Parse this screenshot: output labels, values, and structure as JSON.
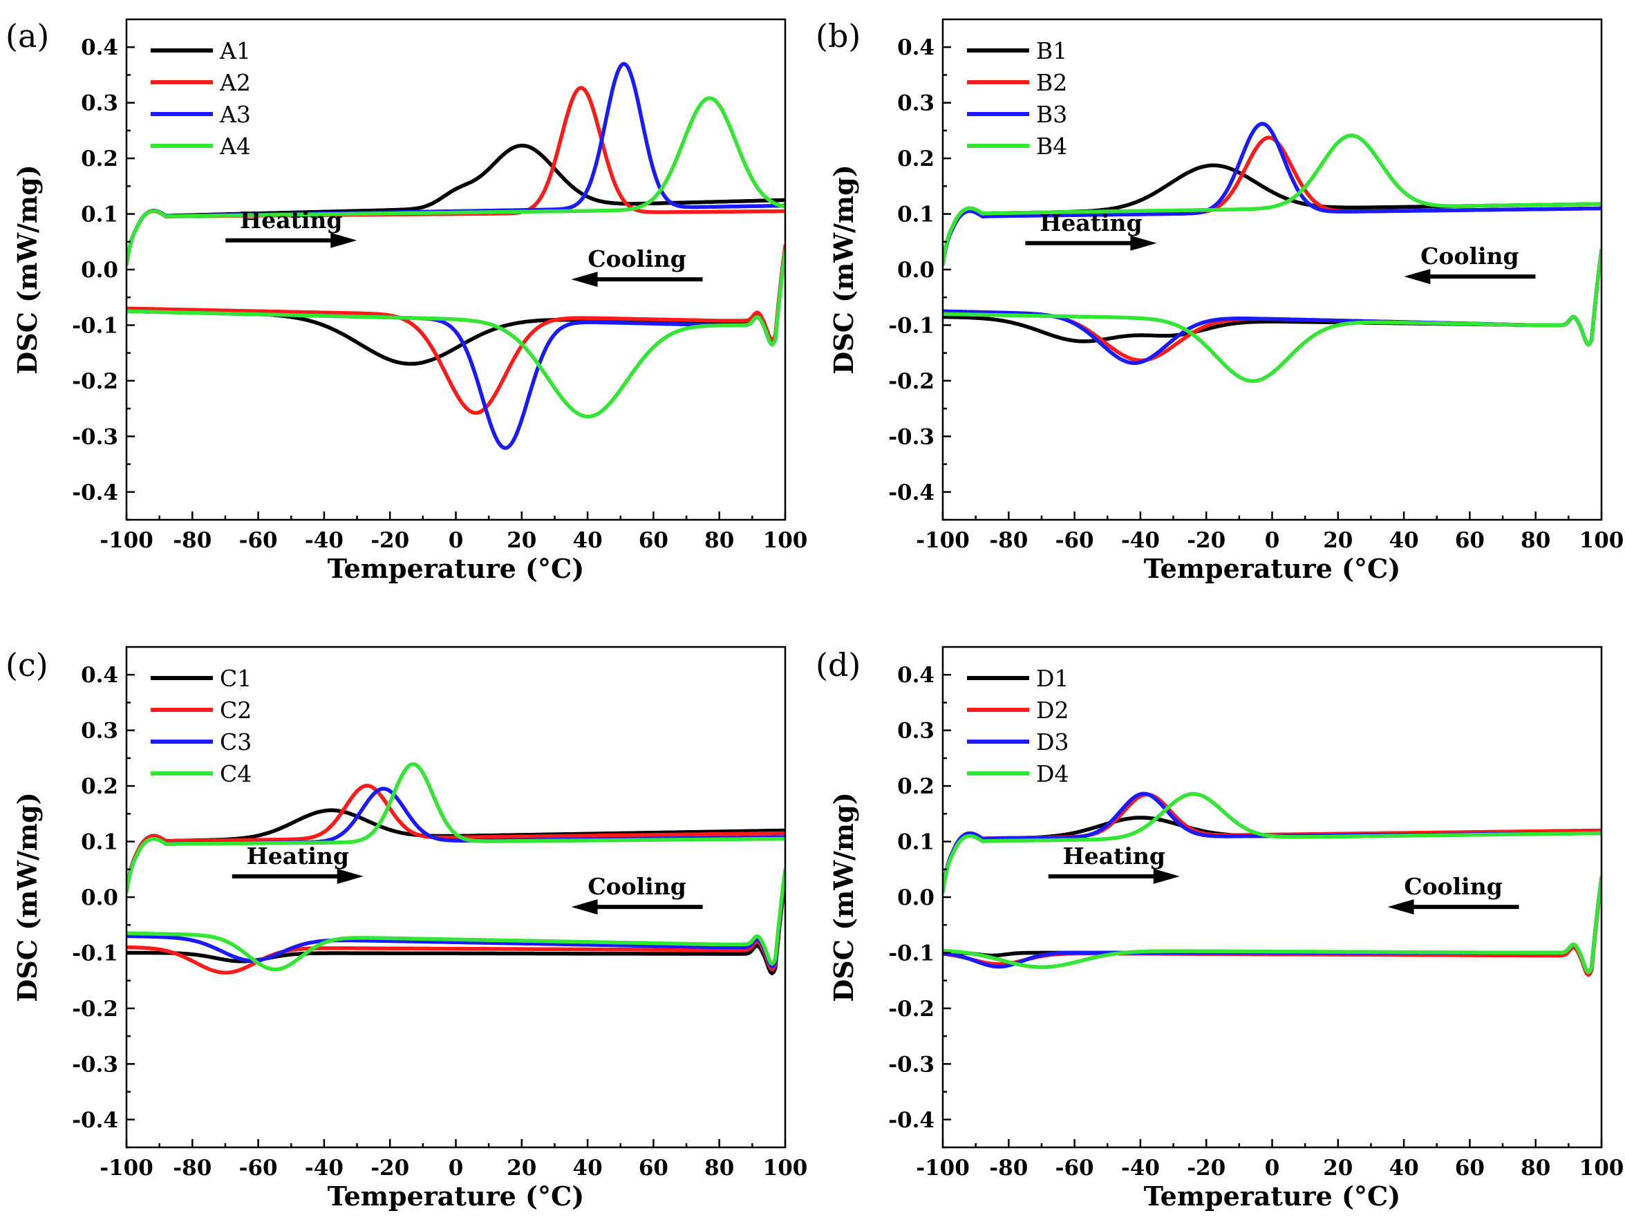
{
  "colors": {
    "s1": "#000000",
    "s2": "#ff1a1a",
    "s3": "#1a1aff",
    "s4": "#33e633"
  },
  "chart_data": [
    {
      "panel_label": "(a)",
      "type": "line",
      "xlabel": "Temperature (°C)",
      "ylabel": "DSC (mW/mg)",
      "xlim": [
        -100,
        100
      ],
      "ylim": [
        -0.45,
        0.45
      ],
      "xticks": [
        -100,
        -80,
        -60,
        -40,
        -20,
        0,
        20,
        40,
        60,
        80,
        100
      ],
      "xtick_labels": [
        "-100",
        "-80",
        "-60",
        "-40",
        "-20",
        "0",
        "20",
        "40",
        "60",
        "80",
        "100"
      ],
      "yticks": [
        -0.4,
        -0.3,
        -0.2,
        -0.1,
        0.0,
        0.1,
        0.2,
        0.3,
        0.4
      ],
      "ytick_labels": [
        "-0.4",
        "-0.3",
        "-0.2",
        "-0.1",
        "0.0",
        "0.1",
        "0.2",
        "0.3",
        "0.4"
      ],
      "legend": [
        "A1",
        "A2",
        "A3",
        "A4"
      ],
      "annotations": [
        {
          "text": "Heating",
          "arrow_direction": "right",
          "x": -50,
          "y": 0.05
        },
        {
          "text": "Cooling",
          "arrow_direction": "left",
          "x": 55,
          "y": -0.02
        }
      ],
      "series": [
        {
          "name": "A1",
          "heating": {
            "base": [
              0.095,
              0.125
            ],
            "peaks": [
              [
                20,
                0.11,
                10
              ],
              [
                0,
                0.02,
                5
              ]
            ],
            "drop_after": 30
          },
          "cooling": {
            "base": [
              -0.075,
              -0.095
            ],
            "peaks": [
              [
                -14,
                -0.085,
                15
              ]
            ]
          }
        },
        {
          "name": "A2",
          "heating": {
            "base": [
              0.095,
              0.105
            ],
            "peaks": [
              [
                38,
                0.225,
                6
              ]
            ]
          },
          "cooling": {
            "base": [
              -0.07,
              -0.092
            ],
            "peaks": [
              [
                6,
                -0.175,
                9
              ]
            ]
          }
        },
        {
          "name": "A3",
          "heating": {
            "base": [
              0.095,
              0.115
            ],
            "peaks": [
              [
                51,
                0.26,
                5.5
              ]
            ]
          },
          "cooling": {
            "base": [
              -0.075,
              -0.1
            ],
            "peaks": [
              [
                15,
                -0.23,
                7
              ]
            ]
          }
        },
        {
          "name": "A4",
          "heating": {
            "base": [
              0.095,
              0.11
            ],
            "peaks": [
              [
                77,
                0.2,
                8
              ]
            ]
          },
          "cooling": {
            "base": [
              -0.075,
              -0.1
            ],
            "peaks": [
              [
                40,
                -0.17,
                12
              ]
            ]
          }
        }
      ]
    },
    {
      "panel_label": "(b)",
      "type": "line",
      "xlabel": "Temperature (°C)",
      "ylabel": "DSC (mW/mg)",
      "xlim": [
        -100,
        100
      ],
      "ylim": [
        -0.45,
        0.45
      ],
      "xticks": [
        -100,
        -80,
        -60,
        -40,
        -20,
        0,
        20,
        40,
        60,
        80,
        100
      ],
      "xtick_labels": [
        "-100",
        "-80",
        "-60",
        "-40",
        "-20",
        "0",
        "20",
        "40",
        "60",
        "80",
        "100"
      ],
      "yticks": [
        -0.4,
        -0.3,
        -0.2,
        -0.1,
        0.0,
        0.1,
        0.2,
        0.3,
        0.4
      ],
      "ytick_labels": [
        "-0.4",
        "-0.3",
        "-0.2",
        "-0.1",
        "0.0",
        "0.1",
        "0.2",
        "0.3",
        "0.4"
      ],
      "legend": [
        "B1",
        "B2",
        "B3",
        "B4"
      ],
      "annotations": [
        {
          "text": "Heating",
          "arrow_direction": "right",
          "x": -55,
          "y": 0.045
        },
        {
          "text": "Cooling",
          "arrow_direction": "left",
          "x": 60,
          "y": -0.015
        }
      ],
      "series": [
        {
          "name": "B1",
          "heating": {
            "base": [
              0.1,
              0.118
            ],
            "peaks": [
              [
                -18,
                0.08,
                13
              ]
            ]
          },
          "cooling": {
            "base": [
              -0.085,
              -0.1
            ],
            "peaks": [
              [
                -58,
                -0.04,
                12
              ],
              [
                -30,
                -0.025,
                10
              ]
            ]
          }
        },
        {
          "name": "B2",
          "heating": {
            "base": [
              0.095,
              0.11
            ],
            "peaks": [
              [
                -1,
                0.135,
                7
              ]
            ]
          },
          "cooling": {
            "base": [
              -0.075,
              -0.1
            ],
            "peaks": [
              [
                -40,
                -0.08,
                11
              ]
            ]
          }
        },
        {
          "name": "B3",
          "heating": {
            "base": [
              0.095,
              0.11
            ],
            "peaks": [
              [
                -3,
                0.16,
                6.5
              ]
            ]
          },
          "cooling": {
            "base": [
              -0.075,
              -0.1
            ],
            "peaks": [
              [
                -42,
                -0.085,
                10
              ]
            ]
          }
        },
        {
          "name": "B4",
          "heating": {
            "base": [
              0.1,
              0.118
            ],
            "peaks": [
              [
                24,
                0.13,
                9
              ]
            ]
          },
          "cooling": {
            "base": [
              -0.08,
              -0.1
            ],
            "peaks": [
              [
                -6,
                -0.11,
                11
              ]
            ]
          }
        }
      ]
    },
    {
      "panel_label": "(c)",
      "type": "line",
      "xlabel": "Temperature (°C)",
      "ylabel": "DSC (mW/mg)",
      "xlim": [
        -100,
        100
      ],
      "ylim": [
        -0.45,
        0.45
      ],
      "xticks": [
        -100,
        -80,
        -60,
        -40,
        -20,
        0,
        20,
        40,
        60,
        80,
        100
      ],
      "xtick_labels": [
        "-100",
        "-80",
        "-60",
        "-40",
        "-20",
        "0",
        "20",
        "40",
        "60",
        "80",
        "100"
      ],
      "yticks": [
        -0.4,
        -0.3,
        -0.2,
        -0.1,
        0.0,
        0.1,
        0.2,
        0.3,
        0.4
      ],
      "ytick_labels": [
        "-0.4",
        "-0.3",
        "-0.2",
        "-0.1",
        "0.0",
        "0.1",
        "0.2",
        "0.3",
        "0.4"
      ],
      "legend": [
        "C1",
        "C2",
        "C3",
        "C4"
      ],
      "annotations": [
        {
          "text": "Heating",
          "arrow_direction": "right",
          "x": -48,
          "y": 0.035
        },
        {
          "text": "Cooling",
          "arrow_direction": "left",
          "x": 55,
          "y": -0.02
        }
      ],
      "series": [
        {
          "name": "C1",
          "heating": {
            "base": [
              0.1,
              0.12
            ],
            "peaks": [
              [
                -38,
                0.05,
                11
              ]
            ]
          },
          "cooling": {
            "base": [
              -0.1,
              -0.102
            ],
            "peaks": [
              [
                -65,
                -0.015,
                8
              ]
            ]
          }
        },
        {
          "name": "C2",
          "heating": {
            "base": [
              0.1,
              0.115
            ],
            "peaks": [
              [
                -27,
                0.095,
                6.5
              ]
            ]
          },
          "cooling": {
            "base": [
              -0.09,
              -0.095
            ],
            "peaks": [
              [
                -70,
                -0.045,
                9
              ]
            ]
          }
        },
        {
          "name": "C3",
          "heating": {
            "base": [
              0.095,
              0.108
            ],
            "peaks": [
              [
                -22,
                0.095,
                6.5
              ]
            ]
          },
          "cooling": {
            "base": [
              -0.07,
              -0.09
            ],
            "peaks": [
              [
                -62,
                -0.04,
                9
              ]
            ]
          }
        },
        {
          "name": "C4",
          "heating": {
            "base": [
              0.095,
              0.105
            ],
            "peaks": [
              [
                -13,
                0.14,
                6
              ]
            ]
          },
          "cooling": {
            "base": [
              -0.065,
              -0.085
            ],
            "peaks": [
              [
                -55,
                -0.06,
                8
              ]
            ]
          }
        }
      ]
    },
    {
      "panel_label": "(d)",
      "type": "line",
      "xlabel": "Temperature (°C)",
      "ylabel": "DSC (mW/mg)",
      "xlim": [
        -100,
        100
      ],
      "ylim": [
        -0.45,
        0.45
      ],
      "xticks": [
        -100,
        -80,
        -60,
        -40,
        -20,
        0,
        20,
        40,
        60,
        80,
        100
      ],
      "xtick_labels": [
        "-100",
        "-80",
        "-60",
        "-40",
        "-20",
        "0",
        "20",
        "40",
        "60",
        "80",
        "100"
      ],
      "yticks": [
        -0.4,
        -0.3,
        -0.2,
        -0.1,
        0.0,
        0.1,
        0.2,
        0.3,
        0.4
      ],
      "ytick_labels": [
        "-0.4",
        "-0.3",
        "-0.2",
        "-0.1",
        "0.0",
        "0.1",
        "0.2",
        "0.3",
        "0.4"
      ],
      "legend": [
        "D1",
        "D2",
        "D3",
        "D4"
      ],
      "annotations": [
        {
          "text": "Heating",
          "arrow_direction": "right",
          "x": -48,
          "y": 0.035
        },
        {
          "text": "Cooling",
          "arrow_direction": "left",
          "x": 55,
          "y": -0.02
        }
      ],
      "series": [
        {
          "name": "D1",
          "heating": {
            "base": [
              0.105,
              0.115
            ],
            "peaks": [
              [
                -40,
                0.035,
                12
              ]
            ]
          },
          "cooling": {
            "base": [
              -0.1,
              -0.1
            ],
            "peaks": [
              [
                -85,
                -0.005,
                4
              ]
            ]
          }
        },
        {
          "name": "D2",
          "heating": {
            "base": [
              0.105,
              0.12
            ],
            "peaks": [
              [
                -38,
                0.075,
                7
              ]
            ]
          },
          "cooling": {
            "base": [
              -0.1,
              -0.105
            ],
            "peaks": [
              [
                -83,
                -0.02,
                8
              ]
            ]
          }
        },
        {
          "name": "D3",
          "heating": {
            "base": [
              0.105,
              0.115
            ],
            "peaks": [
              [
                -39,
                0.078,
                7
              ]
            ]
          },
          "cooling": {
            "base": [
              -0.1,
              -0.1
            ],
            "peaks": [
              [
                -83,
                -0.025,
                7
              ]
            ]
          }
        },
        {
          "name": "D4",
          "heating": {
            "base": [
              0.1,
              0.115
            ],
            "peaks": [
              [
                -24,
                0.08,
                9
              ]
            ]
          },
          "cooling": {
            "base": [
              -0.095,
              -0.1
            ],
            "peaks": [
              [
                -70,
                -0.03,
                12
              ]
            ]
          }
        }
      ]
    }
  ]
}
